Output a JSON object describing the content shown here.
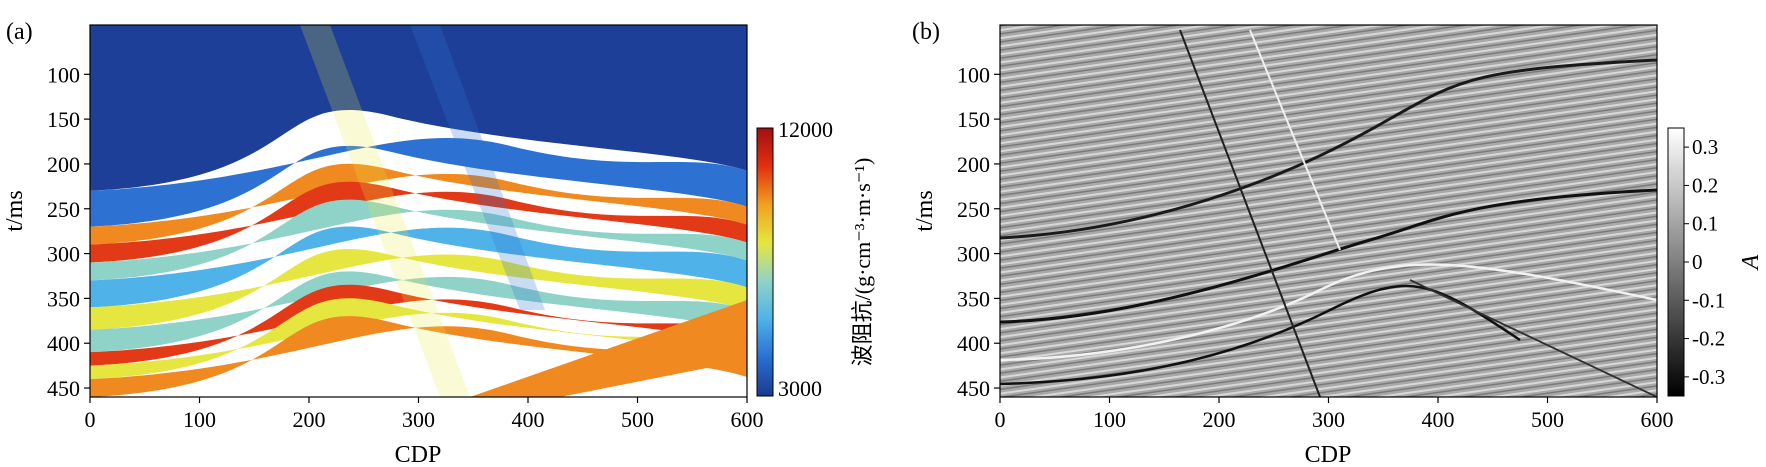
{
  "figure": {
    "background": "#ffffff"
  },
  "chart_data": [
    {
      "type": "heatmap",
      "panel_label": "(a)",
      "xlabel": "CDP",
      "ylabel": "t/ms",
      "xlim": [
        0,
        600
      ],
      "ylim": [
        460,
        45
      ],
      "xticks": [
        0,
        100,
        200,
        300,
        400,
        500,
        600
      ],
      "yticks": [
        100,
        150,
        200,
        250,
        300,
        350,
        400,
        450
      ],
      "colorbar": {
        "label": "波阻抗/(g·cm⁻³·m·s⁻¹)",
        "min": 3000,
        "max": 12000,
        "tick_labels": [
          "12000",
          "3000"
        ],
        "colors": [
          "#1a3a8f",
          "#2a6fd0",
          "#4fb2e8",
          "#8fd3c8",
          "#e6e640",
          "#f0a020",
          "#e03010",
          "#a01010"
        ]
      },
      "layers": [
        {
          "color": "#1e3f98",
          "from": 45,
          "to": 230
        },
        {
          "color": "#2d72d2",
          "from": 230,
          "to": 270
        },
        {
          "color": "#f08a20",
          "from": 270,
          "to": 290
        },
        {
          "color": "#e23a16",
          "from": 290,
          "to": 310
        },
        {
          "color": "#8fd3c8",
          "from": 310,
          "to": 330
        },
        {
          "color": "#4fb2e8",
          "from": 330,
          "to": 360
        },
        {
          "color": "#e6e640",
          "from": 360,
          "to": 385
        },
        {
          "color": "#8fd3c8",
          "from": 385,
          "to": 410
        },
        {
          "color": "#e23a16",
          "from": 410,
          "to": 425
        },
        {
          "color": "#e6e640",
          "from": 425,
          "to": 440
        },
        {
          "color": "#f08a20",
          "from": 440,
          "to": 460
        }
      ]
    },
    {
      "type": "heatmap",
      "panel_label": "(b)",
      "xlabel": "CDP",
      "ylabel": "t/ms",
      "xlim": [
        0,
        600
      ],
      "ylim": [
        460,
        45
      ],
      "xticks": [
        0,
        100,
        200,
        300,
        400,
        500,
        600
      ],
      "yticks": [
        100,
        150,
        200,
        250,
        300,
        350,
        400,
        450
      ],
      "colorbar": {
        "label": "A",
        "min": -0.35,
        "max": 0.35,
        "ticks": [
          0.3,
          0.2,
          0.1,
          0,
          -0.1,
          -0.2,
          -0.3
        ],
        "tick_labels": [
          "0.3",
          "0.2",
          "0.1",
          "0",
          "-0.1",
          "-0.2",
          "-0.3"
        ],
        "colors": [
          "#000000",
          "#ffffff"
        ]
      }
    }
  ]
}
